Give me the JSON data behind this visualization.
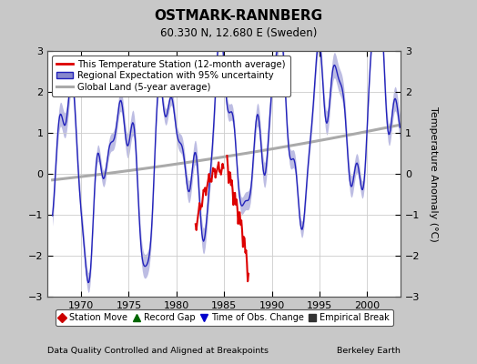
{
  "title": "OSTMARK-RANNBERG",
  "subtitle": "60.330 N, 12.680 E (Sweden)",
  "ylabel": "Temperature Anomaly (°C)",
  "footer_left": "Data Quality Controlled and Aligned at Breakpoints",
  "footer_right": "Berkeley Earth",
  "xlim": [
    1966.5,
    2003.5
  ],
  "ylim": [
    -3,
    3
  ],
  "yticks": [
    -3,
    -2,
    -1,
    0,
    1,
    2,
    3
  ],
  "xticks": [
    1970,
    1975,
    1980,
    1985,
    1990,
    1995,
    2000
  ],
  "bg_color": "#c8c8c8",
  "plot_bg_color": "#ffffff",
  "regional_color": "#2222bb",
  "regional_fill_color": "#8888cc",
  "station_color": "#dd0000",
  "global_color": "#aaaaaa",
  "global_lw": 2.2,
  "legend_items": [
    {
      "label": "This Temperature Station (12-month average)",
      "color": "#dd0000",
      "lw": 2
    },
    {
      "label": "Regional Expectation with 95% uncertainty",
      "color": "#2222bb",
      "fill": "#8888cc"
    },
    {
      "label": "Global Land (5-year average)",
      "color": "#aaaaaa",
      "lw": 2.2
    }
  ],
  "bottom_legend": [
    {
      "marker": "D",
      "color": "#cc0000",
      "label": "Station Move"
    },
    {
      "marker": "^",
      "color": "#006600",
      "label": "Record Gap"
    },
    {
      "marker": "v",
      "color": "#0000cc",
      "label": "Time of Obs. Change"
    },
    {
      "marker": "s",
      "color": "#333333",
      "label": "Empirical Break"
    }
  ]
}
